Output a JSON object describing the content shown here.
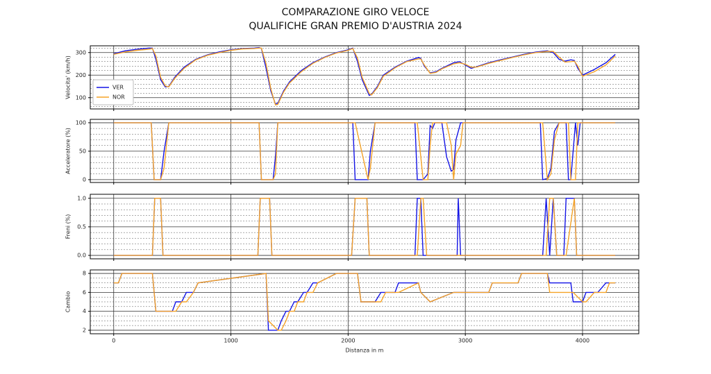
{
  "title": [
    "COMPARAZIONE GIRO VELOCE",
    "QUALIFICHE GRAN PREMIO D'AUSTRIA 2024"
  ],
  "chart_data": [
    {
      "type": "line",
      "ylabel": "Velocita' (km/h)",
      "ylim": [
        50,
        330
      ],
      "yticks": [
        100,
        200,
        300
      ],
      "yminorticks": [
        60,
        80,
        120,
        140,
        160,
        180,
        220,
        240,
        260,
        280,
        320
      ],
      "grid": true,
      "legend": "lower left",
      "x": [
        0,
        100,
        200,
        300,
        330,
        360,
        400,
        440,
        470,
        520,
        600,
        700,
        800,
        900,
        1000,
        1100,
        1200,
        1240,
        1260,
        1300,
        1340,
        1380,
        1400,
        1450,
        1500,
        1600,
        1700,
        1800,
        1900,
        2000,
        2040,
        2080,
        2120,
        2180,
        2200,
        2250,
        2300,
        2400,
        2500,
        2600,
        2620,
        2650,
        2700,
        2750,
        2800,
        2900,
        2950,
        3000,
        3050,
        3100,
        3200,
        3300,
        3400,
        3500,
        3600,
        3700,
        3750,
        3800,
        3850,
        3900,
        3930,
        3960,
        4000,
        4100,
        4200,
        4280
      ],
      "series": [
        {
          "name": "VER",
          "color": "#1414e6",
          "values": [
            295,
            308,
            315,
            320,
            320,
            270,
            180,
            148,
            150,
            190,
            235,
            270,
            290,
            303,
            312,
            318,
            320,
            322,
            318,
            230,
            130,
            72,
            75,
            130,
            170,
            220,
            255,
            280,
            300,
            312,
            320,
            260,
            180,
            110,
            115,
            150,
            200,
            235,
            262,
            278,
            275,
            240,
            210,
            215,
            230,
            255,
            260,
            245,
            230,
            238,
            255,
            268,
            280,
            292,
            302,
            308,
            300,
            270,
            262,
            268,
            265,
            230,
            200,
            225,
            255,
            292
          ]
        },
        {
          "name": "NOR",
          "color": "#f5a326",
          "values": [
            292,
            303,
            310,
            315,
            318,
            285,
            190,
            152,
            148,
            185,
            230,
            268,
            288,
            300,
            310,
            316,
            318,
            320,
            320,
            250,
            140,
            68,
            70,
            125,
            165,
            215,
            252,
            278,
            298,
            310,
            318,
            275,
            190,
            118,
            112,
            145,
            195,
            232,
            260,
            272,
            272,
            245,
            208,
            212,
            228,
            250,
            255,
            248,
            235,
            236,
            252,
            265,
            278,
            290,
            300,
            305,
            305,
            280,
            258,
            260,
            262,
            240,
            195,
            215,
            245,
            285
          ]
        }
      ]
    },
    {
      "type": "line",
      "ylabel": "Acceleratore (%)",
      "ylim": [
        -5,
        106
      ],
      "yticks": [
        0,
        50,
        100
      ],
      "yminorticks": [
        10,
        20,
        30,
        40,
        60,
        70,
        80,
        90
      ],
      "grid": true,
      "x": [
        0,
        320,
        345,
        400,
        430,
        470,
        1240,
        1260,
        1360,
        1380,
        1400,
        2040,
        2060,
        2170,
        2190,
        2230,
        2570,
        2590,
        2640,
        2680,
        2700,
        2720,
        2740,
        2800,
        2840,
        2880,
        2900,
        2920,
        2960,
        2980,
        3000,
        3640,
        3660,
        3700,
        3730,
        3760,
        3800,
        3860,
        3880,
        3900,
        3940,
        3960,
        3980,
        4280
      ],
      "series": [
        {
          "color": "#1414e6",
          "values": [
            100,
            100,
            0,
            0,
            50,
            100,
            100,
            0,
            0,
            40,
            100,
            100,
            0,
            0,
            50,
            100,
            100,
            0,
            0,
            10,
            95,
            90,
            100,
            100,
            40,
            15,
            18,
            70,
            100,
            100,
            100,
            100,
            0,
            2,
            20,
            85,
            100,
            100,
            0,
            0,
            100,
            60,
            100,
            100
          ]
        },
        {
          "color": "#f5a326",
          "values": [
            100,
            100,
            0,
            0,
            20,
            100,
            100,
            0,
            0,
            10,
            100,
            100,
            100,
            0,
            20,
            100,
            100,
            100,
            0,
            0,
            60,
            100,
            100,
            100,
            100,
            60,
            0,
            45,
            60,
            100,
            100,
            100,
            100,
            0,
            10,
            70,
            100,
            100,
            100,
            0,
            0,
            100,
            100,
            100
          ]
        }
      ]
    },
    {
      "type": "line",
      "ylabel": "Freni (%)",
      "ylim": [
        -0.06,
        1.07
      ],
      "yticks": [
        {
          "value": 0,
          "label": "0.0"
        },
        0.5,
        {
          "value": 1,
          "label": "1.0"
        }
      ],
      "yminorticks": [
        0.1,
        0.2,
        0.3,
        0.4,
        0.6,
        0.7,
        0.8,
        0.9
      ],
      "grid": true,
      "x": [
        0,
        330,
        350,
        400,
        420,
        1230,
        1250,
        1330,
        1350,
        2030,
        2060,
        2160,
        2180,
        2570,
        2590,
        2620,
        2640,
        2670,
        2930,
        2940,
        2960,
        3660,
        3690,
        3720,
        3750,
        3780,
        3840,
        3860,
        3930,
        3950,
        4280
      ],
      "series": [
        {
          "color": "#1414e6",
          "values": [
            0,
            0,
            1,
            1,
            0,
            0,
            1,
            1,
            0,
            0,
            1,
            1,
            0,
            0,
            1,
            1,
            0,
            0,
            0,
            1,
            0,
            0,
            1,
            0,
            1,
            0,
            0,
            1,
            1,
            0,
            0
          ]
        },
        {
          "color": "#f5a326",
          "values": [
            0,
            0,
            1,
            1,
            0,
            0,
            1,
            1,
            0,
            0,
            1,
            1,
            0,
            0,
            0,
            1,
            1,
            0,
            0,
            0,
            0,
            0,
            0,
            1,
            1,
            0,
            0,
            0,
            1,
            0,
            0
          ]
        }
      ]
    },
    {
      "type": "line",
      "ylabel": "Cambio",
      "xlabel": "Distanza in m",
      "ylim": [
        1.63,
        8.37
      ],
      "yticks": [
        2,
        4,
        6,
        8
      ],
      "yminorticks": [
        2.5,
        3,
        3.5,
        4.5,
        5,
        5.5,
        6.5,
        7,
        7.5
      ],
      "grid": true,
      "xlim": [
        -200,
        4480
      ],
      "xticks": [
        0,
        1000,
        2000,
        3000,
        4000
      ],
      "x": [
        0,
        40,
        70,
        330,
        360,
        500,
        530,
        580,
        620,
        680,
        720,
        1300,
        1320,
        1400,
        1430,
        1470,
        1500,
        1540,
        1570,
        1620,
        1650,
        1700,
        1740,
        1900,
        2080,
        2110,
        2200,
        2230,
        2280,
        2320,
        2400,
        2430,
        2600,
        2620,
        2700,
        2900,
        3200,
        3230,
        3450,
        3480,
        3700,
        3720,
        3900,
        3920,
        4000,
        4030,
        4100,
        4130,
        4200,
        4230,
        4280
      ],
      "series": [
        {
          "color": "#1414e6",
          "values": [
            7,
            7,
            8,
            8,
            4,
            4,
            5,
            5,
            6,
            6,
            7,
            8,
            2,
            2,
            3,
            4,
            4,
            5,
            5,
            6,
            6,
            7,
            7,
            8,
            8,
            5,
            5,
            5,
            6,
            6,
            6,
            7,
            7,
            6,
            5,
            6,
            6,
            7,
            7,
            8,
            8,
            7,
            7,
            5,
            5,
            6,
            6,
            6,
            7,
            7,
            7
          ]
        },
        {
          "color": "#f5a326",
          "values": [
            7,
            7,
            8,
            8,
            4,
            4,
            4,
            5,
            5,
            6,
            7,
            8,
            3,
            2,
            2,
            3,
            4,
            4,
            5,
            5,
            6,
            6,
            7,
            8,
            8,
            5,
            5,
            5,
            5,
            6,
            6,
            6,
            7,
            6,
            5,
            6,
            6,
            7,
            7,
            8,
            8,
            6,
            6,
            6,
            5,
            5,
            6,
            6,
            6,
            7,
            7
          ]
        }
      ]
    }
  ]
}
